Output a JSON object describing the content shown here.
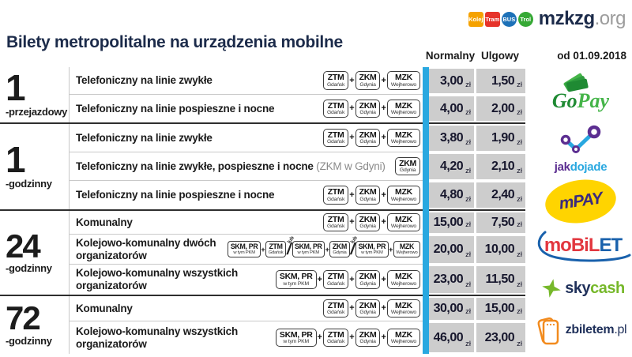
{
  "brand": {
    "badges": [
      {
        "label": "Kolej",
        "shape": "square",
        "color": "#F5A200"
      },
      {
        "label": "Tram",
        "shape": "square",
        "color": "#E6332A"
      },
      {
        "label": "BUS",
        "shape": "circle",
        "color": "#1D71B8"
      },
      {
        "label": "Trol",
        "shape": "circle",
        "color": "#36A935"
      }
    ],
    "name": "mzkzg",
    "tld": ".org"
  },
  "title": "Bilety metropolitalne na urządzenia mobilne",
  "header": {
    "normal": "Normalny",
    "reduced": "Ulgowy",
    "valid_from": "od 01.09.2018"
  },
  "currency": "zł",
  "plus": "+",
  "or_word": "lub",
  "or_slash": "/",
  "accent_blue": "#29A8E0",
  "price_cell_gray": "#CDCDCD",
  "operators": {
    "ztm": {
      "top": "ZTM",
      "bottom": "Gdańsk"
    },
    "zkm": {
      "top": "ZKM",
      "bottom": "Gdynia"
    },
    "mzk": {
      "top": "MZK",
      "bottom": "Wejherowo"
    },
    "skm": {
      "top": "SKM, PR",
      "bottom": "w tym PKM"
    }
  },
  "sections": [
    {
      "number": "1",
      "unit": "-przejazdowy",
      "rows": [
        {
          "label": "Telefoniczny na linie zwykłe",
          "ops": [
            "ztm",
            "+",
            "zkm",
            "+",
            "mzk"
          ],
          "normal": "3,00",
          "reduced": "1,50"
        },
        {
          "label": "Telefoniczny na linie pospieszne i nocne",
          "ops": [
            "ztm",
            "+",
            "zkm",
            "+",
            "mzk"
          ],
          "normal": "4,00",
          "reduced": "2,00"
        }
      ]
    },
    {
      "number": "1",
      "unit": "-godzinny",
      "rows": [
        {
          "label": "Telefoniczny na linie zwykłe",
          "ops": [
            "ztm",
            "+",
            "zkm",
            "+",
            "mzk"
          ],
          "normal": "3,80",
          "reduced": "1,90"
        },
        {
          "label": "Telefoniczny na linie zwykłe, pospieszne i nocne",
          "note": "(ZKM w Gdyni)",
          "ops": [
            "zkm"
          ],
          "normal": "4,20",
          "reduced": "2,10"
        },
        {
          "label": "Telefoniczny na linie pospieszne i nocne",
          "ops": [
            "ztm",
            "+",
            "zkm",
            "+",
            "mzk"
          ],
          "normal": "4,80",
          "reduced": "2,40"
        }
      ]
    },
    {
      "number": "24",
      "unit": "-godzinny",
      "rows": [
        {
          "label": "Komunalny",
          "ops": [
            "ztm",
            "+",
            "zkm",
            "+",
            "mzk"
          ],
          "normal": "15,00",
          "reduced": "7,50"
        },
        {
          "label": "Kolejowo-komunalny dwóch organizatorów",
          "ops": [
            "skm",
            "+",
            "ztm",
            "lub",
            "skm",
            "+",
            "zkm",
            "lub",
            "skm",
            "+",
            "mzk"
          ],
          "normal": "20,00",
          "reduced": "10,00"
        },
        {
          "label": "Kolejowo-komunalny wszystkich organizatorów",
          "ops": [
            "skm",
            "+",
            "ztm",
            "+",
            "zkm",
            "+",
            "mzk"
          ],
          "normal": "23,00",
          "reduced": "11,50"
        }
      ]
    },
    {
      "number": "72",
      "unit": "-godzinny",
      "rows": [
        {
          "label": "Komunalny",
          "ops": [
            "ztm",
            "+",
            "zkm",
            "+",
            "mzk"
          ],
          "normal": "30,00",
          "reduced": "15,00"
        },
        {
          "label": "Kolejowo-komunalny wszystkich organizatorów",
          "ops": [
            "skm",
            "+",
            "ztm",
            "+",
            "zkm",
            "+",
            "mzk"
          ],
          "normal": "46,00",
          "reduced": "23,00"
        }
      ]
    }
  ],
  "payments": [
    {
      "name": "GoPay",
      "parts": [
        {
          "text": "Go",
          "color": "#1F8A33"
        },
        {
          "text": "Pay",
          "color": "#45B549"
        }
      ]
    },
    {
      "name": "jakdojade",
      "parts": [
        {
          "text": "jak",
          "color": "#5C2E91"
        },
        {
          "text": "dojade",
          "color": "#29A8E0"
        }
      ]
    },
    {
      "name": "mPay",
      "text": "mPAY"
    },
    {
      "name": "moBiLET",
      "parts": [
        {
          "text": "moBiL",
          "color": "#E2373F"
        },
        {
          "text": "ET",
          "color": "#1961AC"
        }
      ]
    },
    {
      "name": "skycash",
      "parts": [
        {
          "text": "sky",
          "color": "#20315B"
        },
        {
          "text": "cash",
          "color": "#76B82A"
        }
      ]
    },
    {
      "name": "zbiletem.pl",
      "parts": [
        {
          "text": "zbiletem",
          "color": "#20315B"
        },
        {
          "text": ".pl",
          "color": "#20315B"
        }
      ]
    }
  ]
}
